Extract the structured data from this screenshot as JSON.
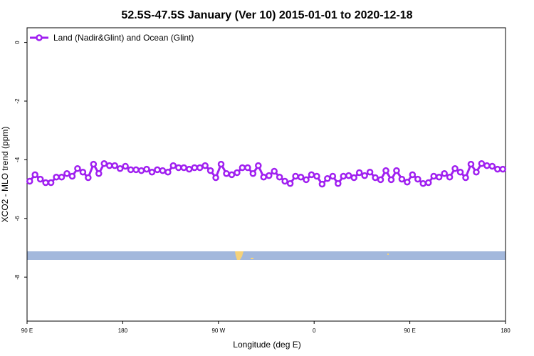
{
  "chart_data": {
    "type": "line",
    "title": "52.5S-47.5S January (Ver 10)   2015-01-01 to 2020-12-18",
    "xlabel": "Longitude (deg E)",
    "ylabel": "XCO2 - MLO trend (ppm)",
    "xlim": [
      90,
      540
    ],
    "xticks": [
      {
        "value": 90,
        "label": "90 E"
      },
      180,
      {
        "value": 270,
        "label": "90 W"
      },
      {
        "value": 360,
        "label": "0"
      },
      {
        "value": 450,
        "label": "90 E"
      },
      {
        "value": 540,
        "label": "180"
      }
    ],
    "ylim": [
      -9.5,
      0.5
    ],
    "yticks": [
      0,
      -2,
      -4,
      -6,
      -8
    ],
    "legend": "upper left",
    "x": [
      92.5,
      97.5,
      102.5,
      107.5,
      112.5,
      117.5,
      122.5,
      127.5,
      132.5,
      137.5,
      142.5,
      147.5,
      152.5,
      157.5,
      162.5,
      167.5,
      172.5,
      177.5,
      182.5,
      187.5,
      192.5,
      197.5,
      202.5,
      207.5,
      212.5,
      217.5,
      222.5,
      227.5,
      232.5,
      237.5,
      242.5,
      247.5,
      252.5,
      257.5,
      262.5,
      267.5,
      272.5,
      277.5,
      282.5,
      287.5,
      292.5,
      297.5,
      302.5,
      307.5,
      312.5,
      317.5,
      322.5,
      327.5,
      332.5,
      337.5,
      342.5,
      347.5,
      352.5,
      357.5,
      362.5,
      367.5,
      372.5,
      377.5,
      382.5,
      387.5,
      392.5,
      397.5,
      402.5,
      407.5,
      412.5,
      417.5,
      422.5,
      427.5,
      432.5,
      437.5,
      442.5,
      447.5,
      452.5,
      457.5,
      462.5,
      467.5,
      472.5,
      477.5,
      482.5,
      487.5,
      492.5,
      497.5,
      502.5,
      507.5,
      512.5,
      517.5,
      522.5,
      527.5,
      532.5,
      537.5
    ],
    "series": [
      {
        "name": "Land (Nadir&Glint) and Ocean (Glint)",
        "color": "#a020f0",
        "values": [
          -4.73,
          -4.51,
          -4.66,
          -4.78,
          -4.78,
          -4.59,
          -4.59,
          -4.47,
          -4.56,
          -4.3,
          -4.42,
          -4.61,
          -4.15,
          -4.47,
          -4.13,
          -4.2,
          -4.2,
          -4.3,
          -4.22,
          -4.34,
          -4.34,
          -4.37,
          -4.32,
          -4.42,
          -4.34,
          -4.37,
          -4.42,
          -4.2,
          -4.27,
          -4.27,
          -4.32,
          -4.27,
          -4.27,
          -4.2,
          -4.37,
          -4.61,
          -4.15,
          -4.47,
          -4.51,
          -4.44,
          -4.27,
          -4.27,
          -4.47,
          -4.2,
          -4.59,
          -4.54,
          -4.39,
          -4.59,
          -4.73,
          -4.81,
          -4.56,
          -4.59,
          -4.68,
          -4.51,
          -4.56,
          -4.83,
          -4.64,
          -4.56,
          -4.81,
          -4.56,
          -4.54,
          -4.61,
          -4.44,
          -4.54,
          -4.42,
          -4.61,
          -4.68,
          -4.37,
          -4.68,
          -4.37,
          -4.66,
          -4.76,
          -4.51,
          -4.66,
          -4.81,
          -4.78,
          -4.56,
          -4.59,
          -4.47,
          -4.59,
          -4.3,
          -4.42,
          -4.61,
          -4.15,
          -4.42,
          -4.13,
          -4.2,
          -4.22,
          -4.32,
          -4.32
        ]
      }
    ]
  }
}
